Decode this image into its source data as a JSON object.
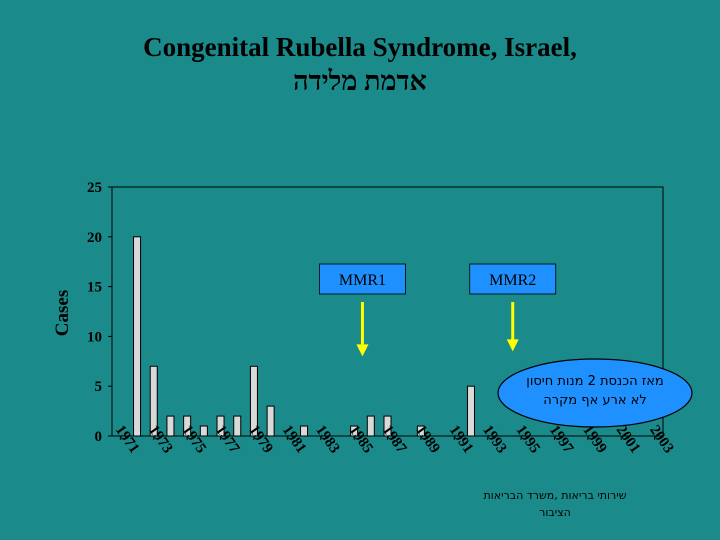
{
  "title_en": "Congenital Rubella Syndrome, Israel,",
  "title_he": "אדמת מלידה",
  "colors": {
    "background": "#1b8a8a",
    "bar_fill": "#d9d9d9",
    "arrow": "#ffff00",
    "bubble_fill": "#1e90ff",
    "label_box": "#1e90ff"
  },
  "chart_data": {
    "type": "bar",
    "title": "Congenital Rubella Syndrome, Israel,",
    "xlabel": "",
    "ylabel": "Cases",
    "ylim": [
      0,
      25
    ],
    "yticks": [
      0,
      5,
      10,
      15,
      20,
      25
    ],
    "x_tick_labels": [
      "1971",
      "1973",
      "1975",
      "1977",
      "1979",
      "1981",
      "1983",
      "1985",
      "1987",
      "1989",
      "1991",
      "1993",
      "1995",
      "1997",
      "1999",
      "2001",
      "2003"
    ],
    "categories": [
      1971,
      1972,
      1973,
      1974,
      1975,
      1976,
      1977,
      1978,
      1979,
      1980,
      1981,
      1982,
      1983,
      1984,
      1985,
      1986,
      1987,
      1988,
      1989,
      1990,
      1991,
      1992,
      1993,
      1994,
      1995,
      1996,
      1997,
      1998,
      1999,
      2000,
      2001,
      2002,
      2003
    ],
    "values": [
      0,
      20,
      7,
      2,
      2,
      1,
      2,
      2,
      7,
      3,
      0,
      1,
      0,
      0,
      1,
      2,
      2,
      0,
      1,
      0,
      0,
      5,
      0,
      0,
      0,
      0,
      0,
      0,
      0,
      0,
      0,
      0,
      0
    ],
    "grid": false,
    "annotations": [
      {
        "label": "MMR1",
        "year": 1985.5,
        "arrow_to": 8
      },
      {
        "label": "MMR2",
        "year": 1994.5,
        "arrow_to": 8.5
      }
    ]
  },
  "bubble": {
    "line1": "מאז הכנסת 2 מנות חיסון",
    "line2": "לא ארע אף מקרה"
  },
  "source": {
    "line1": "שירותי בריאות ,משרד הבריאות",
    "line2": "הציבור"
  }
}
